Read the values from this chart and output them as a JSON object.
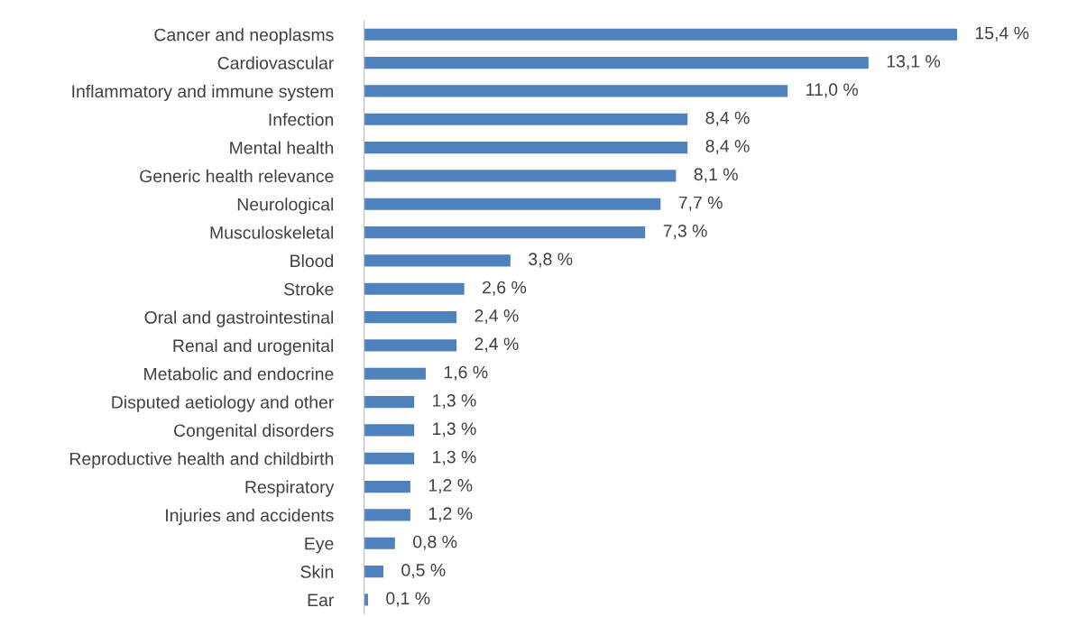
{
  "chart_data": {
    "type": "bar",
    "orientation": "horizontal",
    "categories": [
      "Cancer and neoplasms",
      "Cardiovascular",
      "Inflammatory and immune system",
      "Infection",
      "Mental health",
      "Generic health relevance",
      "Neurological",
      "Musculoskeletal",
      "Blood",
      "Stroke",
      "Oral and gastrointestinal",
      "Renal and urogenital",
      "Metabolic and endocrine",
      "Disputed aetiology and other",
      "Congenital disorders",
      "Reproductive health and childbirth",
      "Respiratory",
      "Injuries and accidents",
      "Eye",
      "Skin",
      "Ear"
    ],
    "values": [
      15.4,
      13.1,
      11.0,
      8.4,
      8.4,
      8.1,
      7.7,
      7.3,
      3.8,
      2.6,
      2.4,
      2.4,
      1.6,
      1.3,
      1.3,
      1.3,
      1.2,
      1.2,
      0.8,
      0.5,
      0.1
    ],
    "value_labels": [
      "15,4 %",
      "13,1 %",
      "11,0 %",
      "8,4 %",
      "8,4 %",
      "8,1 %",
      "7,7 %",
      "7,3 %",
      "3,8 %",
      "2,6 %",
      "2,4 %",
      "2,4 %",
      "1,6 %",
      "1,3 %",
      "1,3 %",
      "1,3 %",
      "1,2 %",
      "1,2 %",
      "0,8 %",
      "0,5 %",
      "0,1 %"
    ],
    "color": "#4f81bd",
    "grid": false,
    "legend": false
  }
}
